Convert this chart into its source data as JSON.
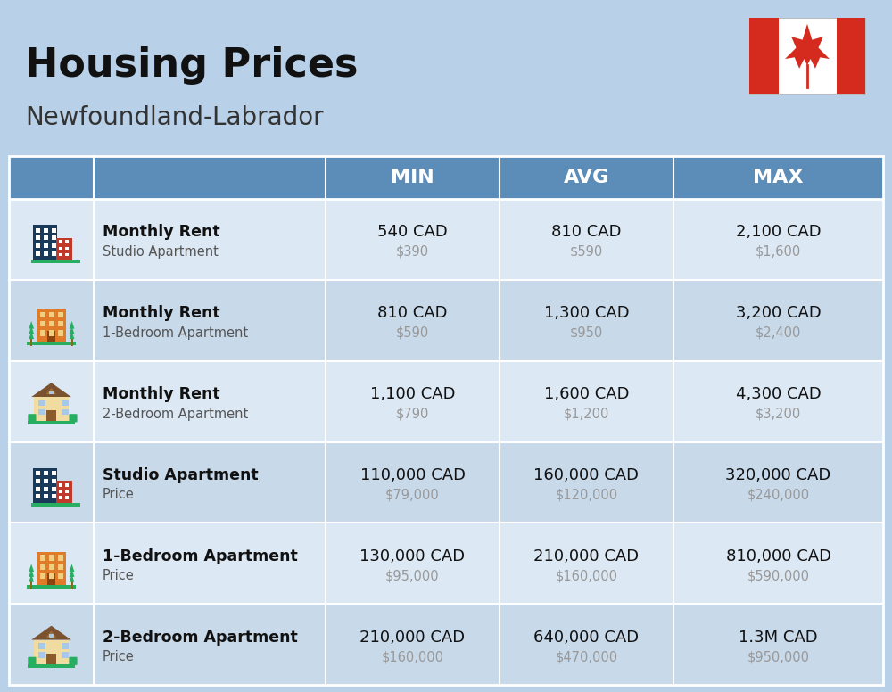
{
  "title": "Housing Prices",
  "subtitle": "Newfoundland-Labrador",
  "bg_color": "#b8d0e8",
  "header_color": "#5b8db8",
  "header_text_color": "#ffffff",
  "row_bg_even": "#dce8f4",
  "row_bg_odd": "#c8d9ea",
  "divider_color": "#ffffff",
  "col_headers": [
    "MIN",
    "AVG",
    "MAX"
  ],
  "rows": [
    {
      "bold_label": "Monthly Rent",
      "sub_label": "Studio Apartment",
      "min_cad": "540 CAD",
      "min_usd": "$390",
      "avg_cad": "810 CAD",
      "avg_usd": "$590",
      "max_cad": "2,100 CAD",
      "max_usd": "$1,600",
      "icon_type": "studio_blue"
    },
    {
      "bold_label": "Monthly Rent",
      "sub_label": "1-Bedroom Apartment",
      "min_cad": "810 CAD",
      "min_usd": "$590",
      "avg_cad": "1,300 CAD",
      "avg_usd": "$950",
      "max_cad": "3,200 CAD",
      "max_usd": "$2,400",
      "icon_type": "one_bed_orange"
    },
    {
      "bold_label": "Monthly Rent",
      "sub_label": "2-Bedroom Apartment",
      "min_cad": "1,100 CAD",
      "min_usd": "$790",
      "avg_cad": "1,600 CAD",
      "avg_usd": "$1,200",
      "max_cad": "4,300 CAD",
      "max_usd": "$3,200",
      "icon_type": "two_bed_tan"
    },
    {
      "bold_label": "Studio Apartment",
      "sub_label": "Price",
      "min_cad": "110,000 CAD",
      "min_usd": "$79,000",
      "avg_cad": "160,000 CAD",
      "avg_usd": "$120,000",
      "max_cad": "320,000 CAD",
      "max_usd": "$240,000",
      "icon_type": "studio_blue"
    },
    {
      "bold_label": "1-Bedroom Apartment",
      "sub_label": "Price",
      "min_cad": "130,000 CAD",
      "min_usd": "$95,000",
      "avg_cad": "210,000 CAD",
      "avg_usd": "$160,000",
      "max_cad": "810,000 CAD",
      "max_usd": "$590,000",
      "icon_type": "one_bed_orange"
    },
    {
      "bold_label": "2-Bedroom Apartment",
      "sub_label": "Price",
      "min_cad": "210,000 CAD",
      "min_usd": "$160,000",
      "avg_cad": "640,000 CAD",
      "avg_usd": "$470,000",
      "max_cad": "1.3M CAD",
      "max_usd": "$950,000",
      "icon_type": "two_bed_tan"
    }
  ]
}
